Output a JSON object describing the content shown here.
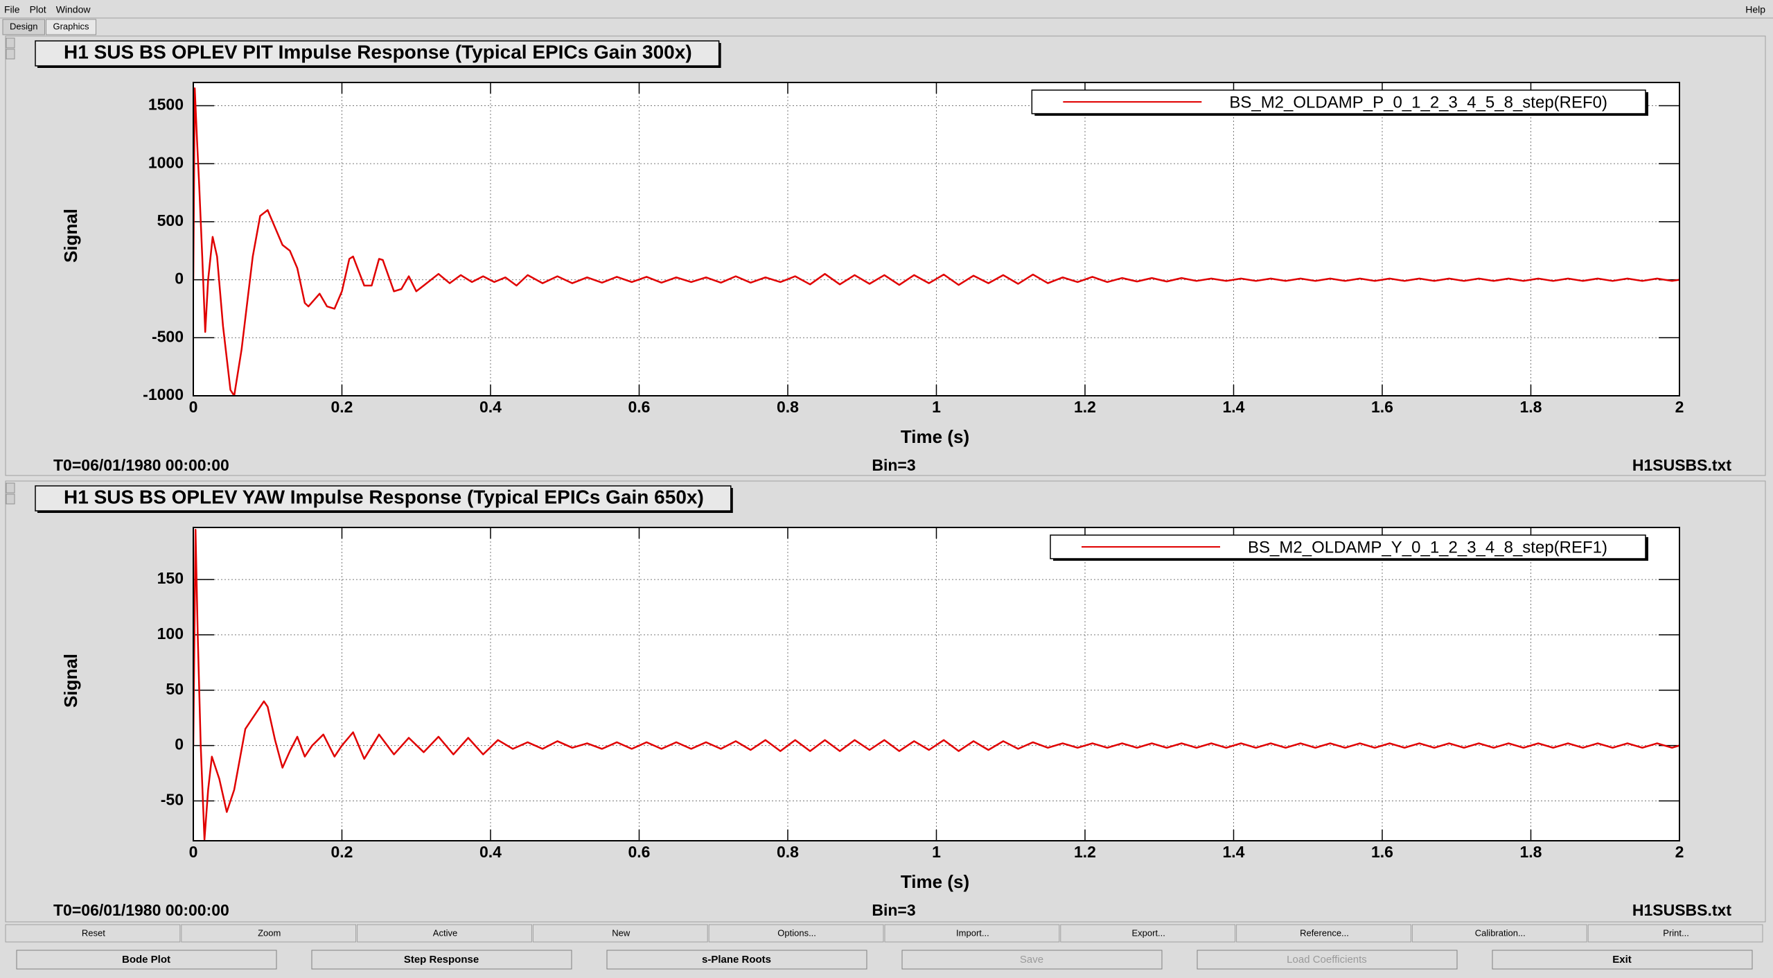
{
  "menu": [
    "File",
    "Plot",
    "Window"
  ],
  "help": "Help",
  "tabs": [
    "Design",
    "Graphics"
  ],
  "chart_data": [
    {
      "type": "line",
      "title": "H1 SUS BS OPLEV PIT Impulse Response (Typical EPICs Gain 300x)",
      "xlabel": "Time (s)",
      "ylabel": "Signal",
      "x": [
        0,
        0.002,
        0.005,
        0.008,
        0.012,
        0.016,
        0.02,
        0.026,
        0.032,
        0.04,
        0.05,
        0.055,
        0.065,
        0.08,
        0.09,
        0.1,
        0.11,
        0.12,
        0.13,
        0.14,
        0.15,
        0.155,
        0.17,
        0.18,
        0.19,
        0.2,
        0.21,
        0.215,
        0.23,
        0.24,
        0.25,
        0.255,
        0.27,
        0.28,
        0.29,
        0.3,
        0.31,
        0.33,
        0.345,
        0.36,
        0.375,
        0.39,
        0.405,
        0.42,
        0.435,
        0.45,
        0.47,
        0.49,
        0.51,
        0.53,
        0.55,
        0.57,
        0.59,
        0.61,
        0.63,
        0.65,
        0.67,
        0.69,
        0.71,
        0.73,
        0.75,
        0.77,
        0.79,
        0.81,
        0.83,
        0.85,
        0.87,
        0.89,
        0.91,
        0.93,
        0.95,
        0.97,
        0.99,
        1.01,
        1.03,
        1.05,
        1.07,
        1.09,
        1.11,
        1.13,
        1.15,
        1.17,
        1.19,
        1.21,
        1.23,
        1.25,
        1.27,
        1.29,
        1.31,
        1.33,
        1.35,
        1.37,
        1.39,
        1.41,
        1.43,
        1.45,
        1.47,
        1.49,
        1.51,
        1.53,
        1.55,
        1.57,
        1.59,
        1.61,
        1.63,
        1.65,
        1.67,
        1.69,
        1.71,
        1.73,
        1.75,
        1.77,
        1.79,
        1.81,
        1.83,
        1.85,
        1.87,
        1.89,
        1.91,
        1.93,
        1.95,
        1.97,
        1.99,
        2
      ],
      "series": [
        {
          "name": "BS_M2_OLDAMP_P_0_1_2_3_4_5_8_step(REF0)",
          "color": "#e00000",
          "values": [
            0,
            1650,
            1200,
            800,
            200,
            -450,
            0,
            370,
            200,
            -400,
            -950,
            -1000,
            -600,
            200,
            550,
            600,
            450,
            300,
            250,
            100,
            -200,
            -230,
            -120,
            -230,
            -250,
            -100,
            180,
            200,
            -50,
            -50,
            180,
            170,
            -100,
            -80,
            30,
            -100,
            -50,
            50,
            -30,
            40,
            -20,
            30,
            -20,
            20,
            -50,
            40,
            -30,
            30,
            -30,
            20,
            -25,
            25,
            -20,
            25,
            -25,
            20,
            -20,
            20,
            -25,
            30,
            -25,
            20,
            -20,
            30,
            -40,
            50,
            -40,
            40,
            -35,
            40,
            -45,
            40,
            -30,
            45,
            -45,
            35,
            -30,
            40,
            -35,
            45,
            -30,
            20,
            -20,
            25,
            -20,
            15,
            -15,
            15,
            -15,
            15,
            -10,
            10,
            -10,
            10,
            -10,
            10,
            -10,
            10,
            -10,
            10,
            -10,
            10,
            -10,
            10,
            -10,
            10,
            -10,
            10,
            -10,
            10,
            -10,
            10,
            -10,
            10,
            -10,
            10,
            -10,
            10,
            -10,
            10,
            -10,
            10,
            -10,
            0
          ]
        }
      ],
      "xlim": [
        0,
        2
      ],
      "xticks": [
        0,
        0.2,
        0.4,
        0.6,
        0.8,
        1,
        1.2,
        1.4,
        1.6,
        1.8,
        2
      ],
      "ylim": [
        -1000,
        1700
      ],
      "yticks": [
        -1000,
        -500,
        0,
        500,
        1000,
        1500
      ],
      "grid": true,
      "footer_left": "T0=06/01/1980 00:00:00",
      "footer_center": "Bin=3",
      "footer_right": "H1SUSBS.txt"
    },
    {
      "type": "line",
      "title": "H1 SUS BS OPLEV YAW Impulse Response (Typical EPICs Gain 650x)",
      "xlabel": "Time (s)",
      "ylabel": "Signal",
      "x": [
        0,
        0.003,
        0.006,
        0.01,
        0.015,
        0.02,
        0.025,
        0.035,
        0.045,
        0.055,
        0.07,
        0.08,
        0.095,
        0.1,
        0.11,
        0.12,
        0.13,
        0.14,
        0.15,
        0.16,
        0.175,
        0.19,
        0.2,
        0.215,
        0.23,
        0.25,
        0.27,
        0.29,
        0.31,
        0.33,
        0.35,
        0.37,
        0.39,
        0.41,
        0.43,
        0.45,
        0.47,
        0.49,
        0.51,
        0.53,
        0.55,
        0.57,
        0.59,
        0.61,
        0.63,
        0.65,
        0.67,
        0.69,
        0.71,
        0.73,
        0.75,
        0.77,
        0.79,
        0.81,
        0.83,
        0.85,
        0.87,
        0.89,
        0.91,
        0.93,
        0.95,
        0.97,
        0.99,
        1.01,
        1.03,
        1.05,
        1.07,
        1.09,
        1.11,
        1.13,
        1.15,
        1.17,
        1.19,
        1.21,
        1.23,
        1.25,
        1.27,
        1.29,
        1.31,
        1.33,
        1.35,
        1.37,
        1.39,
        1.41,
        1.43,
        1.45,
        1.47,
        1.49,
        1.51,
        1.53,
        1.55,
        1.57,
        1.59,
        1.61,
        1.63,
        1.65,
        1.67,
        1.69,
        1.71,
        1.73,
        1.75,
        1.77,
        1.79,
        1.81,
        1.83,
        1.85,
        1.87,
        1.89,
        1.91,
        1.93,
        1.95,
        1.97,
        1.99,
        2
      ],
      "series": [
        {
          "name": "BS_M2_OLDAMP_Y_0_1_2_3_4_8_step(REF1)",
          "color": "#e00000",
          "values": [
            0,
            195,
            100,
            0,
            -85,
            -40,
            -10,
            -30,
            -60,
            -40,
            15,
            25,
            40,
            35,
            5,
            -20,
            -5,
            8,
            -10,
            0,
            10,
            -10,
            0,
            12,
            -12,
            10,
            -8,
            7,
            -6,
            8,
            -8,
            7,
            -8,
            5,
            -3,
            3,
            -3,
            4,
            -2,
            2,
            -3,
            3,
            -3,
            3,
            -3,
            3,
            -3,
            3,
            -3,
            4,
            -4,
            5,
            -5,
            5,
            -5,
            5,
            -5,
            5,
            -4,
            5,
            -5,
            4,
            -4,
            5,
            -5,
            4,
            -4,
            4,
            -3,
            3,
            -2,
            2,
            -2,
            2,
            -2,
            2,
            -2,
            2,
            -2,
            2,
            -2,
            2,
            -2,
            2,
            -2,
            2,
            -2,
            2,
            -2,
            2,
            -2,
            2,
            -2,
            2,
            -2,
            2,
            -2,
            2,
            -2,
            2,
            -2,
            2,
            -2,
            2,
            -2,
            2,
            -2,
            2,
            -2,
            2,
            -2,
            2,
            -2,
            0
          ]
        }
      ],
      "xlim": [
        0,
        2
      ],
      "xticks": [
        0,
        0.2,
        0.4,
        0.6,
        0.8,
        1,
        1.2,
        1.4,
        1.6,
        1.8,
        2
      ],
      "ylim": [
        -86,
        197
      ],
      "yticks": [
        -50,
        0,
        50,
        100,
        150
      ],
      "grid": true,
      "footer_left": "T0=06/01/1980 00:00:00",
      "footer_center": "Bin=3",
      "footer_right": "H1SUSBS.txt"
    }
  ],
  "toolbar": [
    "Reset",
    "Zoom",
    "Active",
    "New",
    "Options...",
    "Import...",
    "Export...",
    "Reference...",
    "Calibration...",
    "Print..."
  ],
  "actions": [
    {
      "label": "Bode Plot",
      "enabled": true
    },
    {
      "label": "Step Response",
      "enabled": true
    },
    {
      "label": "s-Plane Roots",
      "enabled": true
    },
    {
      "label": "Save",
      "enabled": false
    },
    {
      "label": "Load Coefficients",
      "enabled": false
    },
    {
      "label": "Exit",
      "enabled": true
    }
  ]
}
